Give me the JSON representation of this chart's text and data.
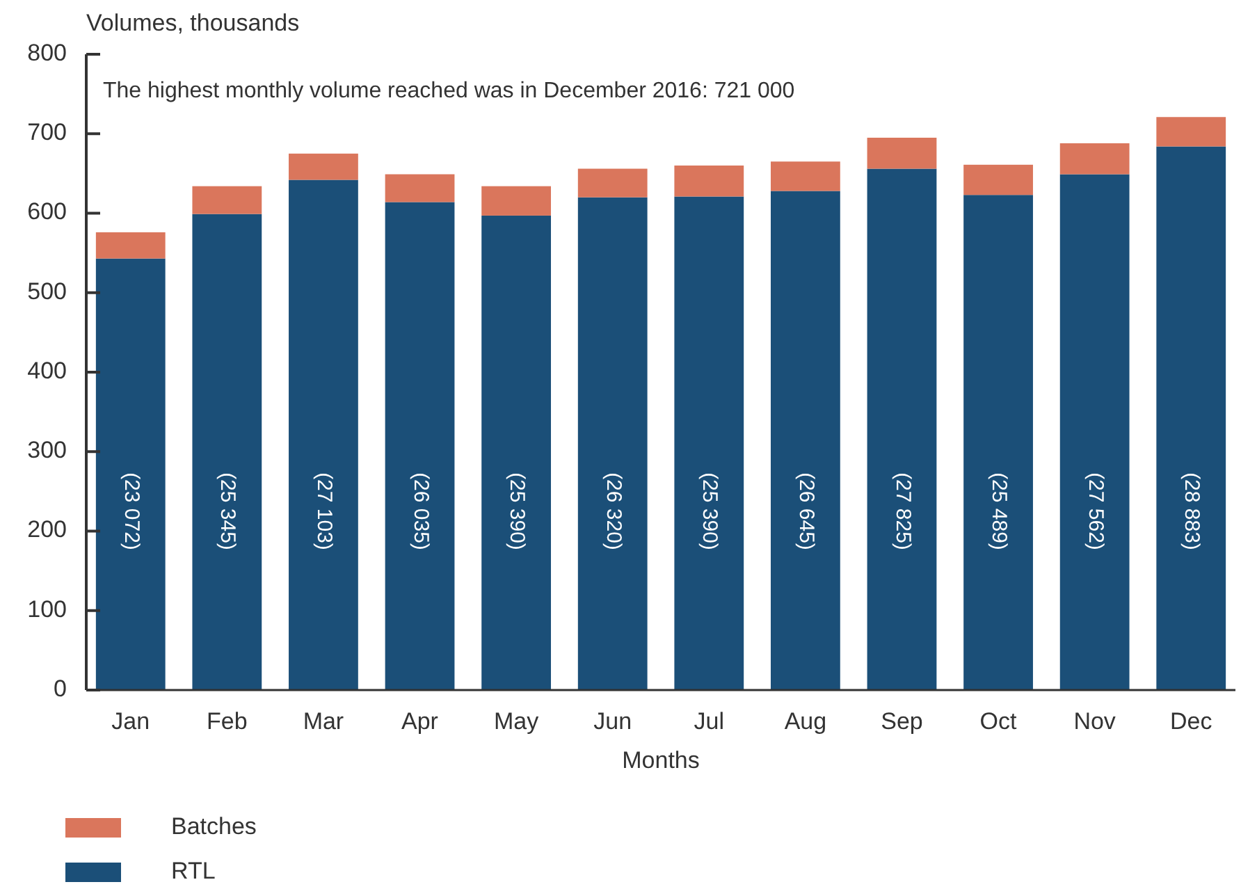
{
  "chart_data": {
    "type": "bar",
    "ylabel": "Volumes, thousands",
    "xlabel": "Months",
    "stacked": true,
    "categories": [
      "Jan",
      "Feb",
      "Mar",
      "Apr",
      "May",
      "Jun",
      "Jul",
      "Aug",
      "Sep",
      "Oct",
      "Nov",
      "Dec"
    ],
    "series": [
      {
        "name": "RTL",
        "color": "#1b4f78",
        "values": [
          543,
          599,
          642,
          614,
          597,
          620,
          621,
          628,
          656,
          623,
          649,
          684
        ]
      },
      {
        "name": "Batches",
        "color": "#da765c",
        "values": [
          33,
          35,
          33,
          35,
          37,
          36,
          39,
          37,
          39,
          38,
          39,
          37
        ]
      }
    ],
    "ylim": [
      0,
      800
    ],
    "yticks": [
      0,
      100,
      200,
      300,
      400,
      500,
      600,
      700,
      800
    ],
    "grid": false,
    "legend": "bottom",
    "annotations": [
      "The highest monthly volume reached was in December 2016: 721 000",
      "(23 072)",
      "(25 345)",
      "(27 103)",
      "(26 035)",
      "(25 390)",
      "(26 320)",
      "(25 390)",
      "(26 645)",
      "(27 825)",
      "(25 489)",
      "(27 562)",
      "(28 883)"
    ]
  }
}
